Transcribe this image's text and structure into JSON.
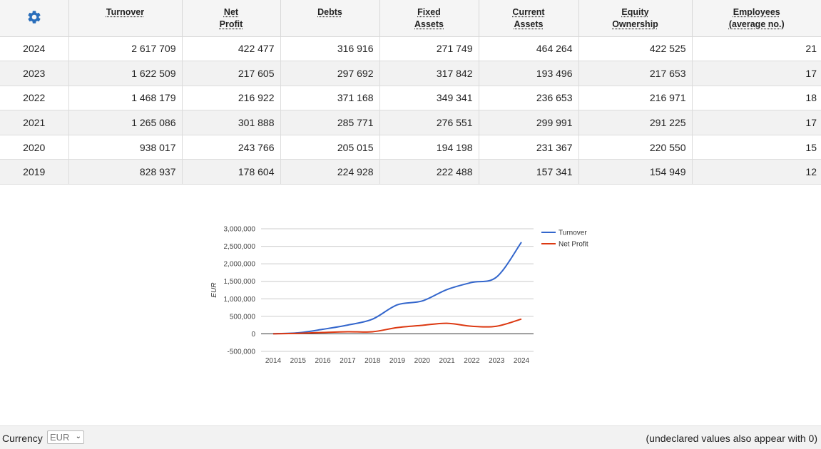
{
  "table": {
    "headers": [
      {
        "lines": [
          "Turnover"
        ]
      },
      {
        "lines": [
          "Net",
          "Profit"
        ]
      },
      {
        "lines": [
          "Debts"
        ]
      },
      {
        "lines": [
          "Fixed",
          "Assets"
        ]
      },
      {
        "lines": [
          "Current",
          "Assets"
        ]
      },
      {
        "lines": [
          "Equity",
          "Ownership"
        ]
      },
      {
        "lines": [
          "Employees",
          "(average no.)"
        ]
      }
    ],
    "rows": [
      {
        "year": "2024",
        "cells": [
          "2 617 709",
          "422 477",
          "316 916",
          "271 749",
          "464 264",
          "422 525",
          "21"
        ]
      },
      {
        "year": "2023",
        "cells": [
          "1 622 509",
          "217 605",
          "297 692",
          "317 842",
          "193 496",
          "217 653",
          "17"
        ]
      },
      {
        "year": "2022",
        "cells": [
          "1 468 179",
          "216 922",
          "371 168",
          "349 341",
          "236 653",
          "216 971",
          "18"
        ]
      },
      {
        "year": "2021",
        "cells": [
          "1 265 086",
          "301 888",
          "285 771",
          "276 551",
          "299 991",
          "291 225",
          "17"
        ]
      },
      {
        "year": "2020",
        "cells": [
          "938 017",
          "243 766",
          "205 015",
          "194 198",
          "231 367",
          "220 550",
          "15"
        ]
      },
      {
        "year": "2019",
        "cells": [
          "828 937",
          "178 604",
          "224 928",
          "222 488",
          "157 341",
          "154 949",
          "12"
        ]
      }
    ],
    "settings_icon": "gear-icon",
    "settings_color": "#2a6ebb"
  },
  "chart_data": {
    "type": "line",
    "title": "",
    "xlabel": "",
    "ylabel": "EUR",
    "x": [
      "2014",
      "2015",
      "2016",
      "2017",
      "2018",
      "2019",
      "2020",
      "2021",
      "2022",
      "2023",
      "2024"
    ],
    "ylim": [
      -500000,
      3000000
    ],
    "yticks": [
      -500000,
      0,
      500000,
      1000000,
      1500000,
      2000000,
      2500000,
      3000000
    ],
    "ytick_labels": [
      "-500,000",
      "0",
      "500,000",
      "1,000,000",
      "1,500,000",
      "2,000,000",
      "2,500,000",
      "3,000,000"
    ],
    "grid": true,
    "legend_position": "right",
    "series": [
      {
        "name": "Turnover",
        "color": "#3366cc",
        "values": [
          5000,
          30000,
          130000,
          250000,
          420000,
          828937,
          938017,
          1265086,
          1468179,
          1622509,
          2617709
        ]
      },
      {
        "name": "Net Profit",
        "color": "#dc3912",
        "values": [
          0,
          15000,
          40000,
          60000,
          60000,
          178604,
          243766,
          301888,
          216922,
          217605,
          422477
        ]
      }
    ]
  },
  "footer": {
    "currency_label": "Currency",
    "currency_value": "EUR",
    "note": "(undeclared values also appear with 0)"
  }
}
